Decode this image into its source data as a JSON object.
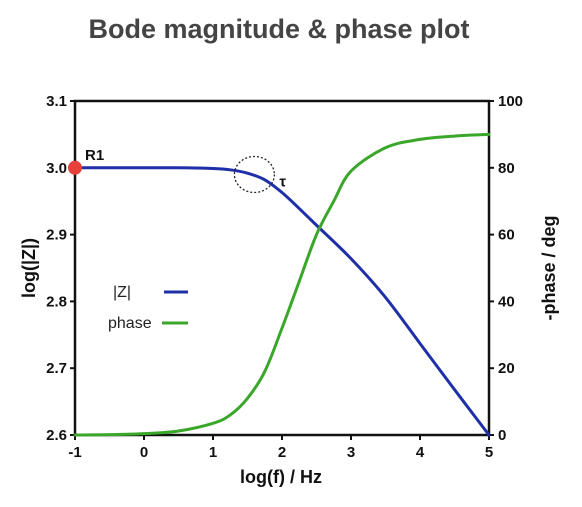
{
  "chart_data": {
    "type": "line",
    "title": "Bode magnitude & phase plot",
    "xlabel": "log(f) / Hz",
    "ylabel_left": "log(|Z|)",
    "ylabel_right": "-phase / deg",
    "xlim": [
      -1,
      5
    ],
    "ylim_left": [
      2.6,
      3.1
    ],
    "ylim_right": [
      0,
      100
    ],
    "x_ticks": [
      "-1",
      "0",
      "1",
      "2",
      "3",
      "4",
      "5"
    ],
    "y_left_ticks": [
      "3.1",
      "3.0",
      "2.9",
      "2.8",
      "2.7",
      "2.6"
    ],
    "y_right_ticks": [
      "100",
      "80",
      "60",
      "40",
      "20",
      "0"
    ],
    "grid": false,
    "legend_position": "center-left",
    "series": [
      {
        "name": "|Z|",
        "axis": "left",
        "color": "#1f2fa8",
        "x": [
          -1,
          0,
          0.5,
          1,
          1.25,
          1.5,
          1.75,
          2,
          2.25,
          2.5,
          3,
          3.5,
          4,
          4.5,
          5
        ],
        "y": [
          3.0,
          3.0,
          3.0,
          2.999,
          2.997,
          2.992,
          2.982,
          2.963,
          2.939,
          2.914,
          2.864,
          2.806,
          2.737,
          2.668,
          2.6
        ]
      },
      {
        "name": "phase",
        "axis": "right",
        "color": "#3aa72b",
        "x": [
          -1,
          -0.5,
          0,
          0.5,
          1,
          1.25,
          1.5,
          1.75,
          2,
          2.25,
          2.5,
          2.75,
          3,
          3.5,
          4,
          4.5,
          5
        ],
        "y": [
          0,
          0.1,
          0.4,
          1.2,
          3.5,
          6,
          11,
          19,
          32,
          46,
          60,
          70,
          79,
          86,
          88.5,
          89.5,
          90
        ]
      }
    ],
    "annotations": {
      "r1_label": "R1",
      "r1_marker": {
        "x": -1,
        "y": 3.0,
        "axis": "left",
        "color": "#e8413c"
      },
      "tau_label": "τ",
      "tau_circle": {
        "x": 1.6,
        "y": 2.99,
        "axis": "left"
      }
    }
  }
}
